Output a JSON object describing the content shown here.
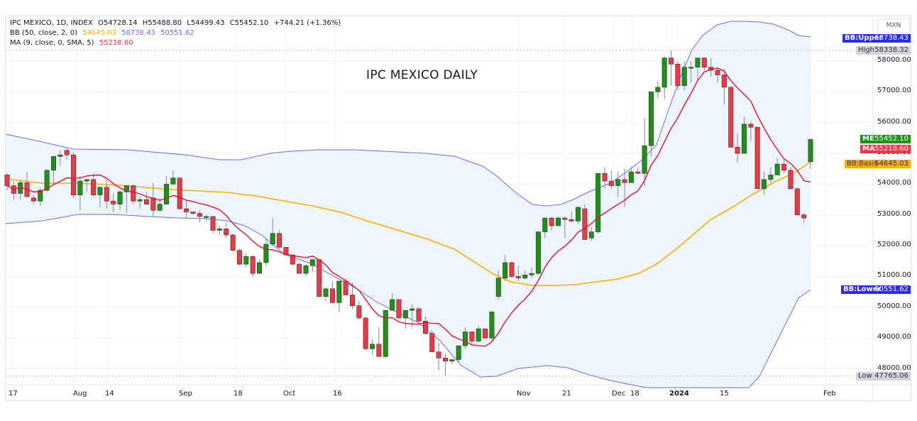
{
  "header": {
    "symbol_line": [
      "IPC MEXICO, 1D, INDEX",
      "O54728.14",
      "H55488.80",
      "L54499.43",
      "C55452.10",
      "+744.21 (+1.36%)"
    ],
    "bb_label": "BB (50, close, 2, 0)",
    "bb_values": [
      "54645.03",
      "58738.43",
      "50551.62"
    ],
    "ma_label": "MA (9, close, 0, SMA, 5)",
    "ma_value": "55218.60"
  },
  "title": "IPC MEXICO DAILY",
  "currency": "MXN",
  "colors": {
    "up": "#1e9215",
    "down": "#f23645",
    "bb_band": "#6b6bff",
    "bb_basis": "#ffad00",
    "ma": "#e8112d",
    "fill": "#eef5fc",
    "grid": "#f0f3fa",
    "bb_tag": "#2a2af0",
    "me_tag": "#1e9215",
    "ma_tag": "#f23645",
    "basis_tag": "#ffad00",
    "hl_tag": "#d1d4dc"
  },
  "tags": {
    "bb_upper": {
      "label": "BB:Upper",
      "value": "58738.43"
    },
    "high": {
      "label": "High",
      "value": "58338.32"
    },
    "me": {
      "label": "ME",
      "value": "55452.10"
    },
    "ma": {
      "label": "MA",
      "value": "55218.60"
    },
    "bb_basis": {
      "label": "BB:Basis",
      "value": "54645.03"
    },
    "bb_lower": {
      "label": "BB:Lower",
      "value": "50551.62"
    },
    "low": {
      "label": "Low",
      "value": "47765.06"
    }
  },
  "chart_data": {
    "type": "candlestick",
    "title": "IPC MEXICO DAILY",
    "xlabel": "",
    "ylabel": "MXN",
    "ylim": [
      47700,
      59000
    ],
    "y_ticks": [
      "58000.00",
      "57000.00",
      "56000.00",
      "55000.00",
      "54000.00",
      "53000.00",
      "52000.00",
      "51000.00",
      "50000.00",
      "49000.00",
      "48000.00"
    ],
    "x_ticks": [
      {
        "label": "17",
        "x": 12
      },
      {
        "label": "Aug",
        "x": 103
      },
      {
        "label": "14",
        "x": 148
      },
      {
        "label": "Sep",
        "x": 252
      },
      {
        "label": "18",
        "x": 329
      },
      {
        "label": "Oct",
        "x": 399
      },
      {
        "label": "16",
        "x": 469
      },
      {
        "label": "Nov",
        "x": 728
      },
      {
        "label": "21",
        "x": 792
      },
      {
        "label": "Dec",
        "x": 862
      },
      {
        "label": "18",
        "x": 888
      },
      {
        "label": "2024",
        "x": 943
      },
      {
        "label": "15",
        "x": 1014
      },
      {
        "label": "Feb",
        "x": 1160
      }
    ],
    "high_line": 58338.32,
    "low_line": 47765.06,
    "last": {
      "open": 54728.14,
      "high": 55488.8,
      "low": 54499.43,
      "close": 55452.1,
      "change": "+744.21 (+1.36%)"
    },
    "indicators": {
      "bb": {
        "params": "50, close, 2, 0",
        "basis": 54645.03,
        "upper": 58738.43,
        "lower": 50551.62
      },
      "ma": {
        "params": "9, close, 0, SMA, 5",
        "value": 55218.6
      }
    },
    "candles": [
      [
        54300,
        54350,
        53800,
        53950
      ],
      [
        53950,
        54100,
        53500,
        53700
      ],
      [
        53700,
        54150,
        53500,
        54050
      ],
      [
        54050,
        54400,
        53550,
        53600
      ],
      [
        53550,
        53650,
        53350,
        53450
      ],
      [
        53450,
        53900,
        53300,
        53800
      ],
      [
        53800,
        54500,
        53750,
        54450
      ],
      [
        54450,
        54850,
        54000,
        54900
      ],
      [
        54900,
        55100,
        54600,
        54950
      ],
      [
        55100,
        55200,
        54800,
        54950
      ],
      [
        54950,
        55050,
        53550,
        53650
      ],
      [
        53650,
        54250,
        53150,
        54100
      ],
      [
        54100,
        54150,
        53750,
        54150
      ],
      [
        54150,
        54350,
        53600,
        53650
      ],
      [
        53650,
        53850,
        53250,
        53900
      ],
      [
        53900,
        54150,
        53200,
        53450
      ],
      [
        53450,
        53700,
        53100,
        53350
      ],
      [
        53350,
        53800,
        53150,
        53750
      ],
      [
        53750,
        53900,
        53050,
        53950
      ],
      [
        53950,
        54000,
        53350,
        53450
      ],
      [
        53450,
        53600,
        53200,
        53500
      ],
      [
        53500,
        53750,
        53500,
        53350
      ],
      [
        53550,
        54050,
        52950,
        53150
      ],
      [
        53150,
        53550,
        53100,
        53350
      ],
      [
        53350,
        54250,
        53400,
        54000
      ],
      [
        54000,
        54450,
        54000,
        54200
      ],
      [
        54200,
        54100,
        53250,
        53200
      ],
      [
        53200,
        53450,
        52900,
        53100
      ],
      [
        53100,
        53100,
        53000,
        53050
      ],
      [
        53050,
        53150,
        52750,
        52950
      ],
      [
        52950,
        53000,
        52800,
        52950
      ],
      [
        52950,
        52800,
        52400,
        52500
      ],
      [
        52500,
        52650,
        52350,
        52550
      ],
      [
        52550,
        52750,
        52250,
        52350
      ],
      [
        52350,
        52400,
        51800,
        51850
      ],
      [
        51850,
        51900,
        51350,
        51400
      ],
      [
        51400,
        51750,
        51300,
        51650
      ],
      [
        51650,
        51700,
        51000,
        51100
      ],
      [
        51100,
        51550,
        51100,
        51450
      ],
      [
        51450,
        52250,
        51350,
        52050
      ],
      [
        52050,
        52900,
        52000,
        52400
      ],
      [
        52400,
        52500,
        51900,
        51950
      ],
      [
        51950,
        51950,
        51700,
        51700
      ],
      [
        51700,
        51700,
        51350,
        51400
      ],
      [
        51400,
        51450,
        51100,
        51100
      ],
      [
        51100,
        51400,
        51000,
        51350
      ],
      [
        51350,
        51500,
        51150,
        51550
      ],
      [
        51550,
        51350,
        50350,
        50350
      ],
      [
        50350,
        50650,
        50200,
        50600
      ],
      [
        50600,
        50850,
        50100,
        50150
      ],
      [
        50150,
        50800,
        49850,
        50850
      ],
      [
        50850,
        50950,
        50550,
        50400
      ],
      [
        50400,
        50800,
        49950,
        50050
      ],
      [
        50050,
        50200,
        49600,
        49650
      ],
      [
        49650,
        49700,
        48600,
        48650
      ],
      [
        48650,
        48950,
        48450,
        48800
      ],
      [
        48800,
        49350,
        48400,
        48400
      ],
      [
        48400,
        49900,
        48350,
        49900
      ],
      [
        49900,
        50450,
        49900,
        50250
      ],
      [
        50250,
        50200,
        49650,
        49650
      ],
      [
        49650,
        49900,
        49300,
        49900
      ],
      [
        49900,
        50100,
        49350,
        49950
      ],
      [
        49950,
        50000,
        49450,
        49550
      ],
      [
        49550,
        49700,
        49100,
        49150
      ],
      [
        49150,
        49250,
        48550,
        48550
      ],
      [
        48550,
        48850,
        47950,
        48350
      ],
      [
        48350,
        48500,
        47765,
        48250
      ],
      [
        48250,
        48300,
        48150,
        48300
      ],
      [
        48300,
        48750,
        48200,
        48750
      ],
      [
        48750,
        49350,
        48650,
        49200
      ],
      [
        49200,
        49200,
        48800,
        48900
      ],
      [
        48900,
        49400,
        48850,
        49300
      ],
      [
        49300,
        49200,
        48950,
        49000
      ],
      [
        49000,
        49800,
        48900,
        49850
      ],
      [
        50350,
        51200,
        50250,
        50950
      ],
      [
        50950,
        51700,
        50850,
        51450
      ],
      [
        51450,
        51500,
        50950,
        51000
      ],
      [
        51000,
        51350,
        50850,
        50950
      ],
      [
        50950,
        51200,
        50900,
        51050
      ],
      [
        51050,
        51300,
        50950,
        51100
      ],
      [
        51100,
        52450,
        51050,
        52450
      ],
      [
        52450,
        52900,
        52250,
        52900
      ],
      [
        52900,
        52950,
        52500,
        52650
      ],
      [
        52650,
        52950,
        52650,
        52900
      ],
      [
        52900,
        52950,
        52250,
        52850
      ],
      [
        52850,
        53100,
        52750,
        52800
      ],
      [
        52800,
        53200,
        52700,
        53250
      ],
      [
        53200,
        53350,
        52350,
        52200
      ],
      [
        52250,
        52600,
        52150,
        52450
      ],
      [
        52450,
        54350,
        52400,
        54350
      ],
      [
        54350,
        54550,
        53850,
        54100
      ],
      [
        54100,
        54450,
        53850,
        53950
      ],
      [
        53950,
        54400,
        53600,
        54150
      ],
      [
        54150,
        54500,
        53250,
        54050
      ],
      [
        54050,
        54550,
        54050,
        54400
      ],
      [
        54400,
        54550,
        54350,
        54350
      ],
      [
        54350,
        56150,
        53950,
        55250
      ],
      [
        55250,
        57000,
        54900,
        57000
      ],
      [
        57000,
        57350,
        56800,
        57150
      ],
      [
        57150,
        58150,
        56750,
        58100
      ],
      [
        58100,
        58338,
        57200,
        57900
      ],
      [
        57900,
        58000,
        57050,
        57200
      ],
      [
        57200,
        58000,
        57050,
        57800
      ],
      [
        57800,
        58000,
        57300,
        57800
      ],
      [
        57800,
        58100,
        57350,
        58100
      ],
      [
        58100,
        58100,
        57700,
        57800
      ],
      [
        57800,
        58100,
        57500,
        57700
      ],
      [
        57700,
        57800,
        57300,
        57550
      ],
      [
        57550,
        57750,
        56600,
        57150
      ],
      [
        57150,
        56300,
        56150,
        55200
      ],
      [
        55200,
        55650,
        54700,
        55000
      ],
      [
        55000,
        56200,
        55000,
        55950
      ],
      [
        55950,
        56050,
        55400,
        55850
      ],
      [
        55850,
        55600,
        54050,
        53850
      ],
      [
        53850,
        54400,
        53650,
        54150
      ],
      [
        54150,
        54550,
        54050,
        54300
      ],
      [
        54300,
        54850,
        54300,
        54650
      ],
      [
        54650,
        54800,
        54350,
        54450
      ],
      [
        54450,
        54550,
        53850,
        53850
      ],
      [
        53850,
        53900,
        53000,
        53000
      ],
      [
        53000,
        53050,
        52750,
        52900
      ],
      [
        54728,
        55489,
        54499,
        55452
      ]
    ]
  }
}
